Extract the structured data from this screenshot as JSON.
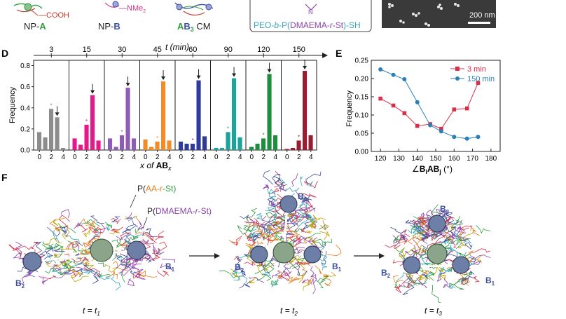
{
  "top_strip": {
    "cooh_label": "—COOH",
    "nme2_label": "—NMe",
    "nme2_sub": "2",
    "np_a_prefix": "NP-",
    "np_a_letter": "A",
    "np_b_prefix": "NP-",
    "np_b_letter": "B",
    "cm_a": "A",
    "cm_b": "B",
    "cm_sub": "3",
    "cm_suffix": " CM",
    "n_label": "N",
    "peo_part1": "PEO-",
    "peo_b": "b",
    "peo_part2": "-P(",
    "peo_part3": "DMAEMA-",
    "peo_r": "r",
    "peo_part4": "-St",
    "peo_part5": ")-SH",
    "scale_bar": "200 nm"
  },
  "panel_d": {
    "label": "D",
    "t_axis_title": "t (min)",
    "ylabel": "Frequency",
    "xlabel_prefix": "x of ",
    "xlabel_ab": "AB",
    "xlabel_x": "x",
    "y_ticks": [
      "0.0",
      "0.2",
      "0.4",
      "0.6",
      "0.8"
    ],
    "x_ticks": [
      "0",
      "2",
      "4"
    ]
  },
  "panel_e": {
    "label": "E",
    "ylabel": "Frequency",
    "xlabel_angle": "∠",
    "xlabel_bi": "B",
    "xlabel_i": "i",
    "xlabel_ab": "AB",
    "xlabel_j": "j",
    "xlabel_unit": " (°)",
    "y_ticks": [
      "0.00",
      "0.05",
      "0.10",
      "0.15",
      "0.20",
      "0.25"
    ],
    "x_ticks": [
      "120",
      "130",
      "140",
      "150",
      "160",
      "170",
      "180"
    ]
  },
  "panel_f": {
    "label": "F",
    "paa_label_1": "P(",
    "paa_label_2": "AA-",
    "paa_label_r": "r",
    "paa_label_3": "-St)",
    "pdm_label_1": "P(",
    "pdm_label_2": "DMAEMA-",
    "pdm_label_r": "r",
    "pdm_label_3": "-St)",
    "b": "B",
    "b1": "1",
    "b2": "2",
    "b3": "3",
    "t_eq": "t = t",
    "t1": "1",
    "t2": "2",
    "t3": "3"
  },
  "colors": {
    "np_a_green": "#2e9e3e",
    "np_b_blue": "#3b4fa0",
    "cooh_red": "#c0392b",
    "nme2_pink": "#d63384",
    "peo_cyan": "#35a6b8",
    "dmaema_purple": "#8e44ad",
    "e_red": "#d6304a",
    "e_blue": "#2a7fb8"
  },
  "chart_data": [
    {
      "type": "bar",
      "panel": "D",
      "title": "",
      "xlabel": "x of ABx",
      "ylabel": "Frequency",
      "ylim": [
        0,
        0.85
      ],
      "categories": [
        "0",
        "1",
        "2",
        "3",
        "4"
      ],
      "top_axis_label": "t (min)",
      "series": [
        {
          "name": "3",
          "color": "#8c8c8c",
          "values": [
            0.17,
            0.12,
            0.39,
            0.31,
            0.02
          ],
          "arrow_index": 3,
          "star_index": 2
        },
        {
          "name": "15",
          "color": "#e5188a",
          "values": [
            0.11,
            0.05,
            0.24,
            0.52,
            0.09
          ],
          "arrow_index": 3,
          "star_index": 2
        },
        {
          "name": "30",
          "color": "#8e5bb5",
          "values": [
            0.11,
            0.03,
            0.14,
            0.59,
            0.11
          ],
          "arrow_index": 3,
          "star_index": 2
        },
        {
          "name": "45",
          "color": "#f28c28",
          "values": [
            0.1,
            0.03,
            0.08,
            0.65,
            0.09
          ],
          "arrow_index": 3,
          "star_index": 2
        },
        {
          "name": "60",
          "color": "#2e3a9c",
          "values": [
            0.08,
            0.06,
            0.06,
            0.66,
            0.13
          ],
          "arrow_index": 3,
          "star_index": 2
        },
        {
          "name": "90",
          "color": "#1ba39c",
          "values": [
            0.02,
            0.02,
            0.17,
            0.68,
            0.12
          ],
          "arrow_index": 3,
          "star_index": 2
        },
        {
          "name": "120",
          "color": "#1e8e3e",
          "values": [
            0.03,
            0.06,
            0.11,
            0.72,
            0.14
          ],
          "arrow_index": 3,
          "star_index": 2
        },
        {
          "name": "150",
          "color": "#9b1b30",
          "values": [
            0.01,
            0.02,
            0.09,
            0.75,
            0.14
          ],
          "arrow_index": 3,
          "star_index": 2
        }
      ]
    },
    {
      "type": "line",
      "panel": "E",
      "title": "",
      "xlabel": "∠BiABj (°)",
      "ylabel": "Frequency",
      "xlim": [
        115,
        185
      ],
      "ylim": [
        0,
        0.25
      ],
      "legend_position": "top-right",
      "series": [
        {
          "name": "3 min",
          "color": "#d6304a",
          "marker": "square",
          "x": [
            120,
            127,
            133,
            140,
            147,
            153,
            160,
            167,
            173
          ],
          "y": [
            0.145,
            0.126,
            0.105,
            0.07,
            0.075,
            0.062,
            0.115,
            0.118,
            0.188
          ]
        },
        {
          "name": "150 min",
          "color": "#2a7fb8",
          "marker": "circle",
          "x": [
            120,
            127,
            133,
            140,
            147,
            153,
            160,
            167,
            173
          ],
          "y": [
            0.225,
            0.21,
            0.198,
            0.135,
            0.072,
            0.055,
            0.04,
            0.035,
            0.04
          ]
        }
      ]
    }
  ]
}
